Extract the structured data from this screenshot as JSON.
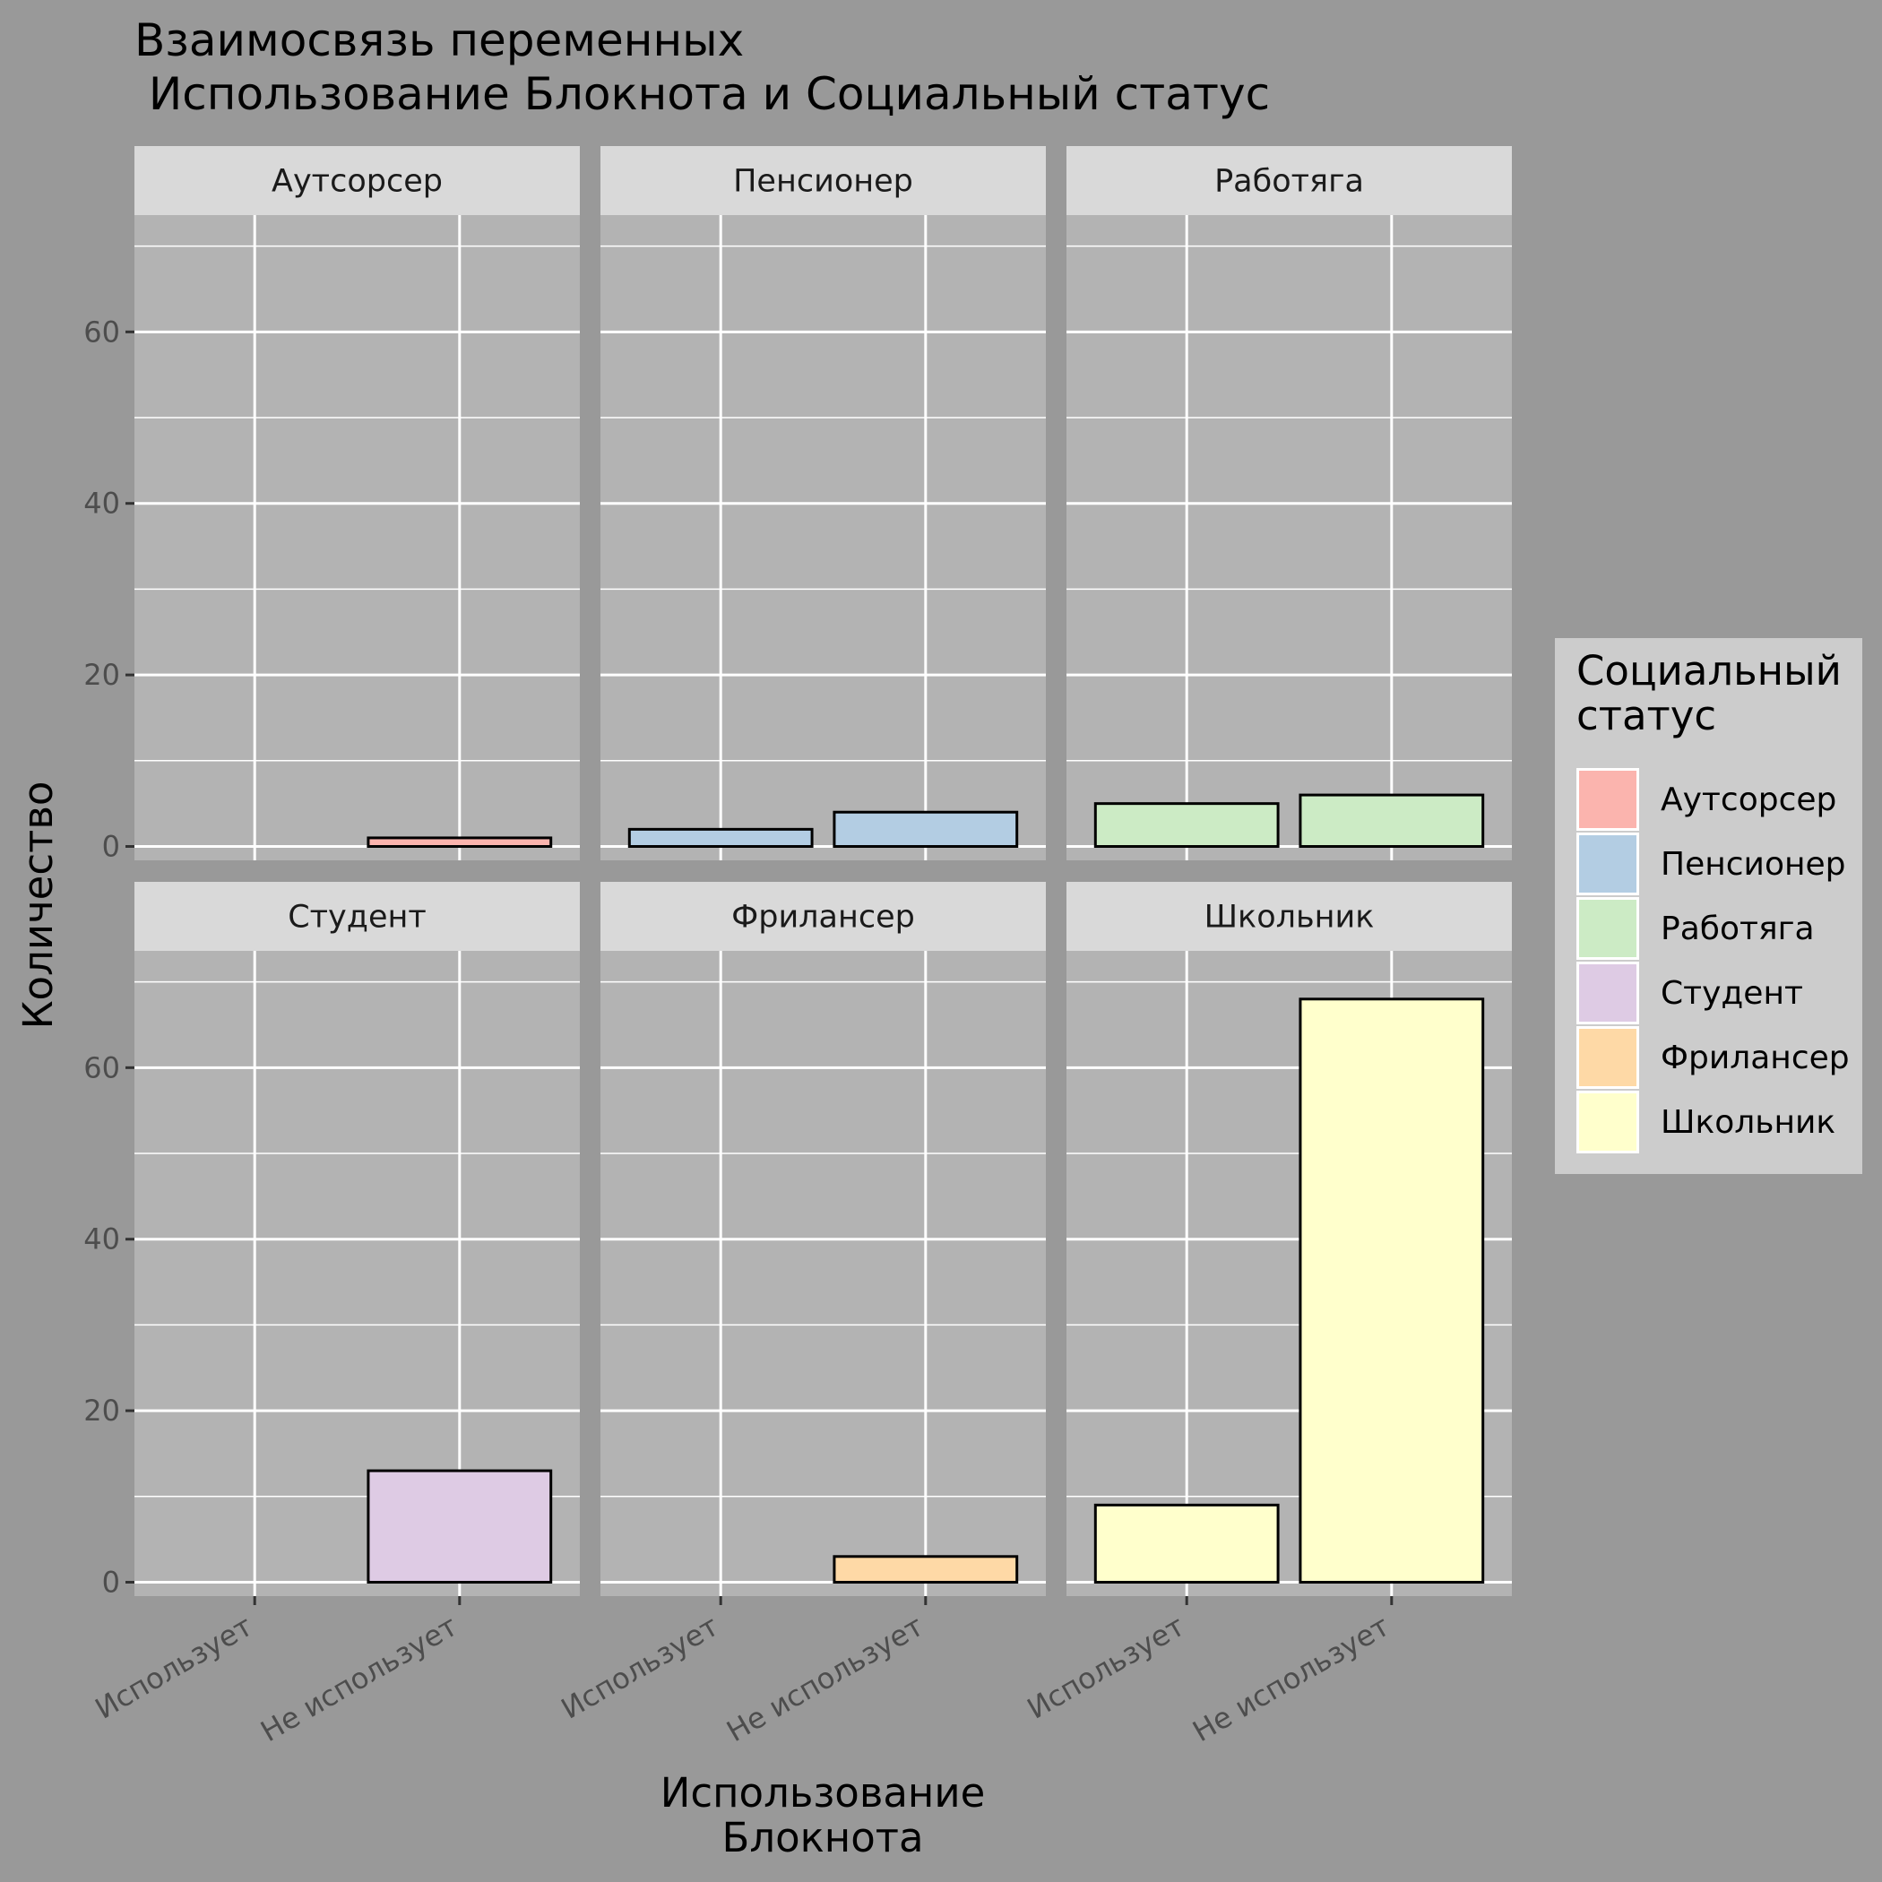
{
  "chart_data": {
    "type": "bar",
    "title": "Взаимосвязь переменных\n Использование Блокнота и Социальный статус",
    "xlabel": "Использование\nБлокнота",
    "ylabel": "Количество",
    "categories": [
      "Использует",
      "Не использует"
    ],
    "ylim": [
      0,
      72
    ],
    "y_ticks": [
      0,
      20,
      40,
      60
    ],
    "grid": true,
    "legend_title": "Социальный\nстатус",
    "legend_position": "right",
    "facets": [
      {
        "name": "Аутсорсер",
        "color": "#FBB4AE",
        "values": [
          0,
          1
        ]
      },
      {
        "name": "Пенсионер",
        "color": "#B3CDE3",
        "values": [
          2,
          4
        ]
      },
      {
        "name": "Работяга",
        "color": "#CCEBC5",
        "values": [
          5,
          6
        ]
      },
      {
        "name": "Студент",
        "color": "#DECBE4",
        "values": [
          0,
          13
        ]
      },
      {
        "name": "Фрилансер",
        "color": "#FED9A6",
        "values": [
          0,
          3
        ]
      },
      {
        "name": "Школьник",
        "color": "#FFFFCC",
        "values": [
          9,
          68
        ]
      }
    ]
  }
}
